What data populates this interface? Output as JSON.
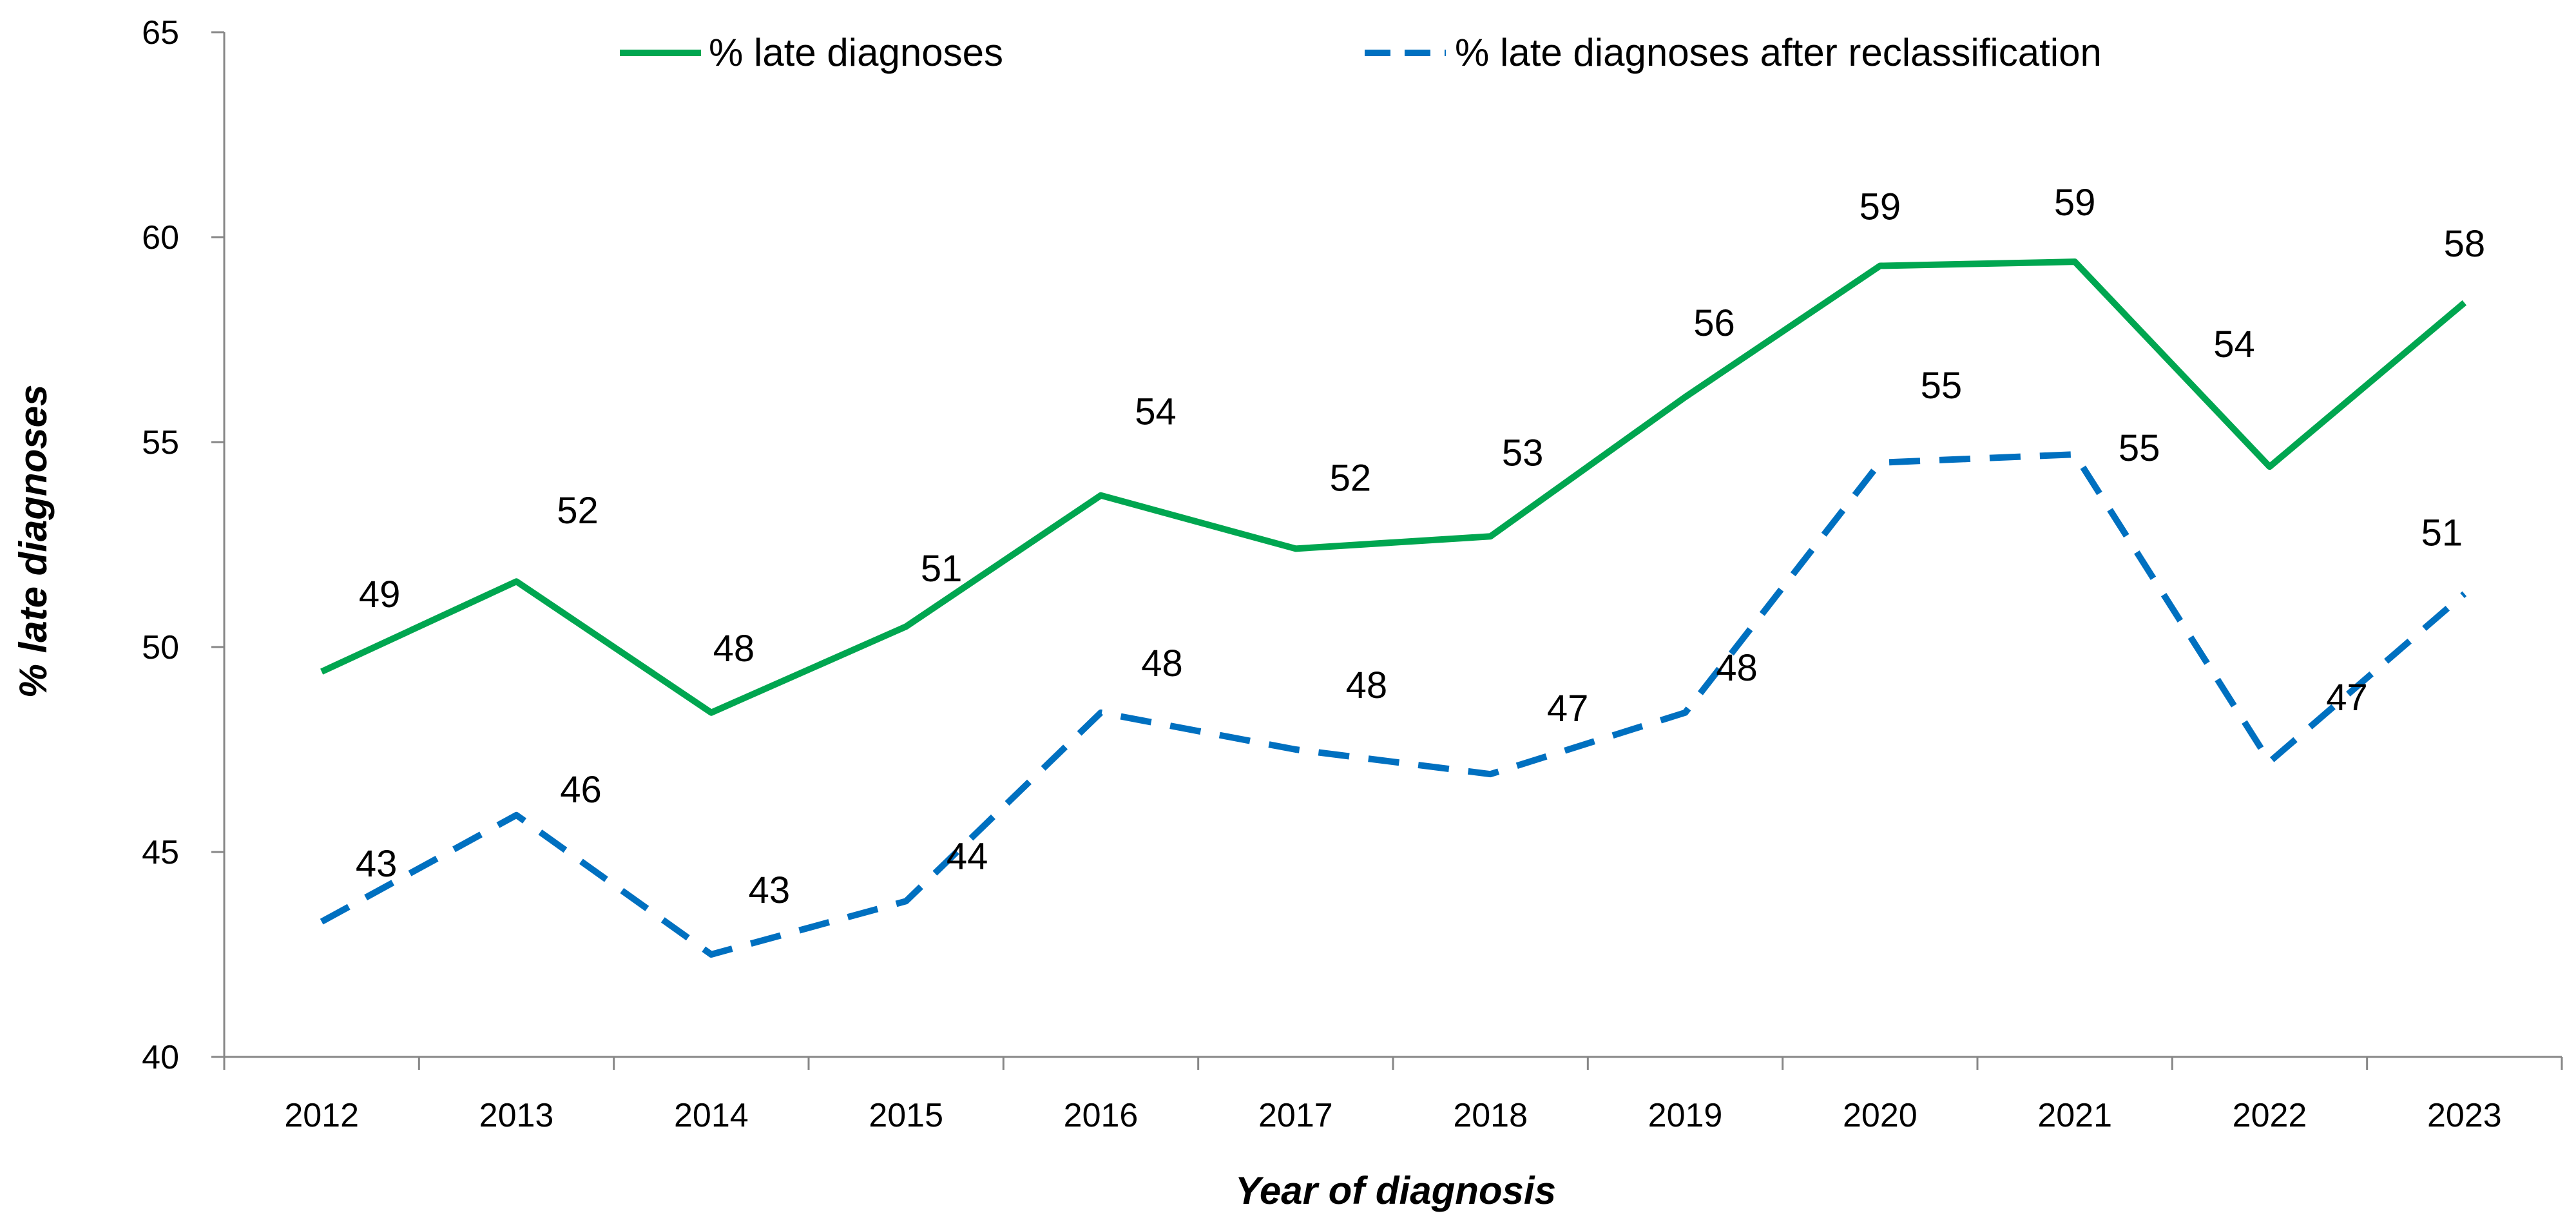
{
  "chart_data": {
    "type": "line",
    "title": "",
    "xlabel": "Year of diagnosis",
    "ylabel": "% late diagnoses",
    "ylim": [
      40,
      65
    ],
    "yticks": [
      40,
      45,
      50,
      55,
      60,
      65
    ],
    "grid": false,
    "legend_position": "top",
    "categories": [
      "2012",
      "2013",
      "2014",
      "2015",
      "2016",
      "2017",
      "2018",
      "2019",
      "2020",
      "2021",
      "2022",
      "2023"
    ],
    "series": [
      {
        "name": "% late diagnoses",
        "color": "#00A650",
        "style": "solid",
        "values": [
          49.4,
          51.6,
          48.4,
          50.5,
          53.7,
          52.4,
          52.7,
          56.1,
          59.3,
          59.4,
          54.4,
          58.4
        ],
        "labels": [
          "49",
          "52",
          "48",
          "51",
          "54",
          "52",
          "53",
          "56",
          "59",
          "59",
          "54",
          "58"
        ]
      },
      {
        "name": "% late diagnoses after reclassification",
        "color": "#0070C0",
        "style": "dashed",
        "values": [
          43.3,
          45.9,
          42.5,
          43.8,
          48.4,
          47.5,
          46.9,
          48.4,
          54.5,
          54.7,
          47.2,
          51.3
        ],
        "labels": [
          "43",
          "46",
          "43",
          "44",
          "48",
          "48",
          "47",
          "48",
          "55",
          "55",
          "47",
          "51"
        ]
      }
    ]
  }
}
